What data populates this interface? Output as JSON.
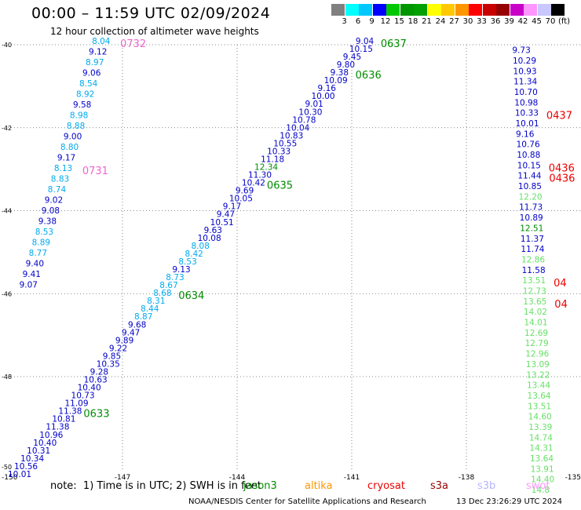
{
  "header": {
    "title": "00:00 – 11:59 UTC 02/09/2024",
    "subtitle": "12 hour collection of altimeter wave heights"
  },
  "colorbar": {
    "colors": [
      "#808080",
      "#00ffff",
      "#00c8ff",
      "#0000ff",
      "#00c800",
      "#009600",
      "#00a000",
      "#ffff00",
      "#ffc800",
      "#ff9600",
      "#ff0000",
      "#c80000",
      "#960000",
      "#c800c8",
      "#ff96ff",
      "#c8c8ff",
      "#000000"
    ],
    "labels": [
      "3",
      "6",
      "9",
      "12",
      "15",
      "18",
      "21",
      "24",
      "27",
      "30",
      "33",
      "36",
      "39",
      "42",
      "45",
      "70",
      "(ft)"
    ]
  },
  "map": {
    "x_ticks": [
      "-150",
      "-147",
      "-144",
      "-141",
      "-138",
      "-135"
    ],
    "y_ticks": [
      "-40",
      "-42",
      "-44",
      "-46",
      "-48",
      "-50"
    ]
  },
  "colors": {
    "blue": "#0000c8",
    "cyan": "#00aaee",
    "green": "#008c00",
    "lightgreen": "#66e066",
    "red": "#ee0000",
    "pink": "#ee66cc"
  },
  "tracks": [
    {
      "name": "left-track",
      "start_lon": -147.8,
      "start_lat": -39.98,
      "end_lon": -149.7,
      "end_lat": -45.85,
      "values": [
        "8.04",
        "9.12",
        "8.97",
        "9.06",
        "8.54",
        "8.92",
        "9.58",
        "8.98",
        "8.88",
        "9.00",
        "8.80",
        "9.17",
        "8.13",
        "8.83",
        "8.74",
        "9.02",
        "9.08",
        "9.38",
        "8.53",
        "8.89",
        "8.77",
        "9.40",
        "9.41",
        "9.07"
      ],
      "times": [
        {
          "label": "0732",
          "index": 0,
          "color": "pink"
        },
        {
          "label": "0731",
          "index": 12,
          "color": "pink"
        }
      ]
    },
    {
      "name": "diagonal-track",
      "start_lon": -140.9,
      "start_lat": -39.98,
      "end_lon": -150.0,
      "end_lat": -50.42,
      "values": [
        "9.04",
        "10.15",
        "9.45",
        "9.80",
        "9.38",
        "10.09",
        "9.16",
        "10.00",
        "9.01",
        "10.30",
        "10.78",
        "10.04",
        "10.83",
        "10.55",
        "10.33",
        "11.18",
        "12.34",
        "11.30",
        "10.42",
        "9.69",
        "10.05",
        "9.17",
        "9.47",
        "10.51",
        "9.63",
        "10.08",
        "8.08",
        "8.42",
        "8.53",
        "9.13",
        "8.73",
        "8.67",
        "8.68",
        "8.31",
        "8.44",
        "8.87",
        "9.68",
        "9.47",
        "9.89",
        "9.22",
        "9.85",
        "10.35",
        "9.28",
        "10.63",
        "10.40",
        "10.73",
        "11.09",
        "11.38",
        "10.81",
        "11.38",
        "10.96",
        "10.40",
        "10.31",
        "10.34",
        "10.56",
        "10.01"
      ],
      "times": [
        {
          "label": "0637",
          "index": 0,
          "color": "green"
        },
        {
          "label": "0636",
          "index": 4,
          "color": "green"
        },
        {
          "label": "0635",
          "index": 18,
          "color": "green"
        },
        {
          "label": "0634",
          "index": 32,
          "color": "green"
        },
        {
          "label": "0633",
          "index": 47,
          "color": "green"
        }
      ]
    },
    {
      "name": "right-track",
      "start_lon": -136.8,
      "start_lat": -40.2,
      "end_lon": -136.3,
      "end_lat": -50.8,
      "values": [
        "9.73",
        "10.29",
        "10.93",
        "11.34",
        "10.70",
        "10.98",
        "10.33",
        "10.01",
        "9.16",
        "10.76",
        "10.88",
        "10.15",
        "11.44",
        "10.85",
        "12.20",
        "11.73",
        "10.89",
        "12.51",
        "11.37",
        "11.74",
        "12.86",
        "11.58",
        "13.51",
        "12.73",
        "13.65",
        "14.02",
        "14.01",
        "12.69",
        "12.79",
        "12.96",
        "13.09",
        "13.22",
        "13.44",
        "13.64",
        "13.51",
        "14.60",
        "13.39",
        "14.74",
        "14.31",
        "13.64",
        "13.91",
        "14.40",
        "14.8"
      ],
      "times": [
        {
          "label": "0437",
          "index": 6,
          "color": "red"
        },
        {
          "label": "0436",
          "index": 11,
          "color": "red"
        },
        {
          "label": "0436",
          "index": 12,
          "color": "red"
        },
        {
          "label": "04",
          "index": 22,
          "color": "red"
        },
        {
          "label": "04",
          "index": 24,
          "color": "red"
        }
      ]
    }
  ],
  "footer": {
    "note": "note:  1) Time is in UTC; 2) SWH is in feet",
    "satellites": [
      {
        "name": "jason3",
        "color": "#008c00",
        "x": 310
      },
      {
        "name": "altika",
        "color": "#ff9600",
        "x": 388
      },
      {
        "name": "cryosat",
        "color": "#ee0000",
        "x": 468
      },
      {
        "name": "s3a",
        "color": "#960000",
        "x": 548
      },
      {
        "name": "s3b",
        "color": "#b4b4ff",
        "x": 608
      },
      {
        "name": "swot",
        "color": "#ff96ff",
        "x": 670
      }
    ],
    "credit": "NOAA/NESDIS Center for Satellite Applications and Research",
    "timestamp": "13 Dec 23:26:29 UTC 2024"
  }
}
